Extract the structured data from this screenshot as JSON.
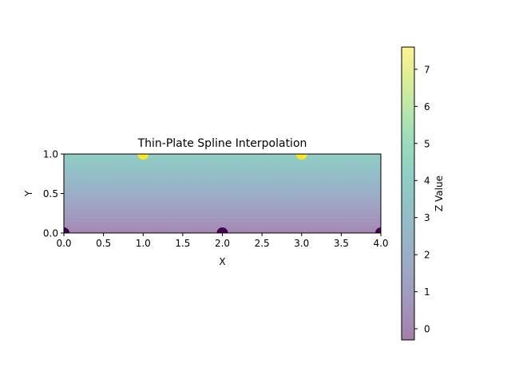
{
  "chart_data": {
    "type": "heatmap",
    "title": "Thin-Plate Spline Interpolation",
    "xlabel": "X",
    "ylabel": "Y",
    "xlim": [
      0.0,
      4.0
    ],
    "ylim": [
      0.0,
      1.0
    ],
    "x_ticks": [
      0.0,
      0.5,
      1.0,
      1.5,
      2.0,
      2.5,
      3.0,
      3.5,
      4.0
    ],
    "x_tick_labels": [
      "0.0",
      "0.5",
      "1.0",
      "1.5",
      "2.0",
      "2.5",
      "3.0",
      "3.5",
      "4.0"
    ],
    "y_ticks": [
      0.0,
      0.5,
      1.0
    ],
    "y_tick_labels": [
      "0.0",
      "0.5",
      "1.0"
    ],
    "colormap": "viridis",
    "alpha": 0.5,
    "grid": false,
    "points": [
      {
        "x": 0.0,
        "y": 0.0,
        "z": 0.0
      },
      {
        "x": 1.0,
        "y": 1.0,
        "z": 4.0
      },
      {
        "x": 2.0,
        "y": 0.0,
        "z": 0.0
      },
      {
        "x": 3.0,
        "y": 1.0,
        "z": 4.0
      },
      {
        "x": 4.0,
        "y": 0.0,
        "z": 0.0
      }
    ],
    "colorbar": {
      "label": "Z Value",
      "range": [
        -0.3,
        7.6
      ],
      "ticks": [
        0,
        1,
        2,
        3,
        4,
        5,
        6,
        7
      ],
      "tick_labels": [
        "0",
        "1",
        "2",
        "3",
        "4",
        "5",
        "6",
        "7"
      ],
      "placement": "right"
    }
  }
}
